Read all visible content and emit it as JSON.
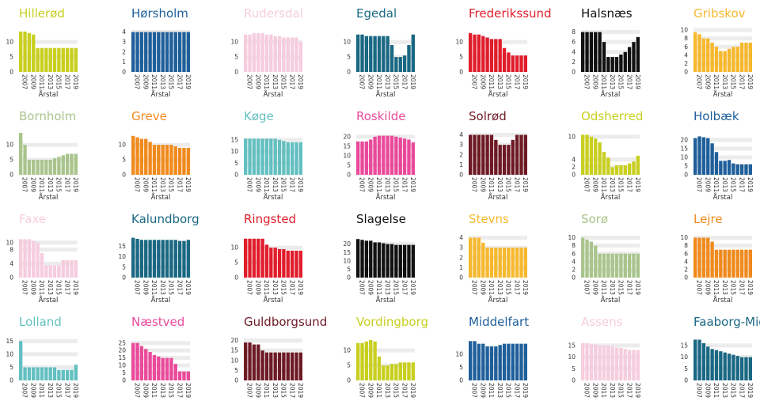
{
  "chart_data": [
    {
      "type": "bar",
      "title": "Hillerød",
      "color": "#c8cf1f",
      "xlabel": "Årstal",
      "x": [
        2007,
        2008,
        2009,
        2010,
        2011,
        2012,
        2013,
        2014,
        2015,
        2016,
        2017,
        2018,
        2019,
        2020
      ],
      "values": [
        13.5,
        13.5,
        13,
        12.5,
        8,
        8,
        8,
        8,
        8,
        8,
        8,
        8,
        8,
        8
      ],
      "yticks": [
        0,
        5,
        10
      ],
      "ymax": 14
    },
    {
      "type": "bar",
      "title": "Hørsholm",
      "color": "#1f5f9a",
      "xlabel": "Årstal",
      "x": [
        2007,
        2008,
        2009,
        2010,
        2011,
        2012,
        2013,
        2014,
        2015,
        2016,
        2017,
        2018,
        2019,
        2020
      ],
      "values": [
        4,
        4,
        4,
        4,
        4,
        4,
        4,
        4,
        4,
        4,
        4,
        4,
        4,
        4
      ],
      "yticks": [
        0,
        1,
        2,
        3,
        4
      ],
      "ymax": 4.2
    },
    {
      "type": "bar",
      "title": "Rudersdal",
      "color": "#f6cdde",
      "xlabel": "Årstal",
      "x": [
        2007,
        2008,
        2009,
        2010,
        2011,
        2012,
        2013,
        2014,
        2015,
        2016,
        2017,
        2018,
        2019,
        2020
      ],
      "values": [
        12.5,
        12.5,
        13,
        13,
        13,
        12.5,
        12.5,
        12,
        12,
        11.5,
        11.5,
        11.5,
        11.5,
        10
      ],
      "yticks": [
        0,
        5,
        10
      ],
      "ymax": 14
    },
    {
      "type": "bar",
      "title": "Egedal",
      "color": "#1a6883",
      "xlabel": "Årstal",
      "x": [
        2007,
        2008,
        2009,
        2010,
        2011,
        2012,
        2013,
        2014,
        2015,
        2016,
        2017,
        2018,
        2019,
        2020
      ],
      "values": [
        12.5,
        12.5,
        12,
        12,
        12,
        12,
        12,
        12,
        9,
        5,
        5,
        5.5,
        9,
        12.5
      ],
      "yticks": [
        0,
        5,
        10
      ],
      "ymax": 14
    },
    {
      "type": "bar",
      "title": "Frederikssund",
      "color": "#e11d2b",
      "xlabel": "Årstal",
      "x": [
        2007,
        2008,
        2009,
        2010,
        2011,
        2012,
        2013,
        2014,
        2015,
        2016,
        2017,
        2018,
        2019,
        2020
      ],
      "values": [
        13,
        12.5,
        12.5,
        12,
        11.5,
        11,
        11,
        11,
        8,
        6.5,
        5.5,
        5.5,
        5.5,
        5.5
      ],
      "yticks": [
        0,
        5,
        10
      ],
      "ymax": 14
    },
    {
      "type": "bar",
      "title": "Halsnæs",
      "color": "#111111",
      "xlabel": "Årstal",
      "x": [
        2007,
        2008,
        2009,
        2010,
        2011,
        2012,
        2013,
        2014,
        2015,
        2016,
        2017,
        2018,
        2019,
        2020
      ],
      "values": [
        8,
        8,
        8,
        8,
        8,
        6,
        3,
        3,
        3,
        3.5,
        4,
        5,
        6,
        7
      ],
      "yticks": [
        0,
        2,
        4,
        6,
        8
      ],
      "ymax": 8.4
    },
    {
      "type": "bar",
      "title": "Gribskov",
      "color": "#f6b82d",
      "xlabel": "Årstal",
      "x": [
        2007,
        2008,
        2009,
        2010,
        2011,
        2012,
        2013,
        2014,
        2015,
        2016,
        2017,
        2018,
        2019,
        2020
      ],
      "values": [
        9.5,
        9,
        8,
        8,
        7,
        6,
        5,
        5,
        5.5,
        6,
        6,
        7,
        7,
        7
      ],
      "yticks": [
        0,
        2,
        4,
        6,
        8,
        10
      ],
      "ymax": 10
    },
    {
      "type": "bar",
      "title": "Bornholm",
      "color": "#a9c48c",
      "xlabel": "Årstal",
      "x": [
        2007,
        2008,
        2009,
        2010,
        2011,
        2012,
        2013,
        2014,
        2015,
        2016,
        2017,
        2018,
        2019,
        2020
      ],
      "values": [
        14,
        10,
        5,
        5,
        5,
        5,
        5,
        5,
        5.5,
        6,
        6.5,
        7,
        7,
        7
      ],
      "yticks": [
        0,
        5,
        10
      ],
      "ymax": 14
    },
    {
      "type": "bar",
      "title": "Greve",
      "color": "#f08a1d",
      "xlabel": "Årstal",
      "x": [
        2007,
        2008,
        2009,
        2010,
        2011,
        2012,
        2013,
        2014,
        2015,
        2016,
        2017,
        2018,
        2019,
        2020
      ],
      "values": [
        13,
        12.5,
        12,
        12,
        11,
        10,
        10,
        10,
        10,
        10,
        9.5,
        9,
        9,
        9
      ],
      "yticks": [
        0,
        5,
        10
      ],
      "ymax": 14
    },
    {
      "type": "bar",
      "title": "Køge",
      "color": "#63bfc0",
      "xlabel": "Årstal",
      "x": [
        2007,
        2008,
        2009,
        2010,
        2011,
        2012,
        2013,
        2014,
        2015,
        2016,
        2017,
        2018,
        2019,
        2020
      ],
      "values": [
        15.5,
        15.5,
        15.5,
        15.5,
        15.5,
        15.5,
        15.5,
        15.5,
        15,
        14.5,
        14,
        14,
        14,
        14
      ],
      "yticks": [
        0,
        5,
        10,
        15
      ],
      "ymax": 18
    },
    {
      "type": "bar",
      "title": "Roskilde",
      "color": "#ea4a9b",
      "xlabel": "Årstal",
      "x": [
        2007,
        2008,
        2009,
        2010,
        2011,
        2012,
        2013,
        2014,
        2015,
        2016,
        2017,
        2018,
        2019,
        2020
      ],
      "values": [
        17.5,
        17.5,
        17.5,
        18.5,
        20,
        20.5,
        20.5,
        20.5,
        20.5,
        20,
        19.5,
        19,
        18.5,
        17
      ],
      "yticks": [
        0,
        5,
        10,
        15,
        20
      ],
      "ymax": 22
    },
    {
      "type": "bar",
      "title": "Solrød",
      "color": "#6d1a25",
      "xlabel": "Årstal",
      "x": [
        2007,
        2008,
        2009,
        2010,
        2011,
        2012,
        2013,
        2014,
        2015,
        2016,
        2017,
        2018,
        2019,
        2020
      ],
      "values": [
        4,
        4,
        4,
        4,
        4,
        4,
        3.5,
        3,
        3,
        3,
        3.5,
        4,
        4,
        4
      ],
      "yticks": [
        0,
        1,
        2,
        3,
        4
      ],
      "ymax": 4.2
    },
    {
      "type": "bar",
      "title": "Odsherred",
      "color": "#c8cf1f",
      "xlabel": "Årstal",
      "x": [
        2007,
        2008,
        2009,
        2010,
        2011,
        2012,
        2013,
        2014,
        2015,
        2016,
        2017,
        2018,
        2019,
        2020
      ],
      "values": [
        10.5,
        10.5,
        10,
        9.5,
        8.5,
        6,
        4.5,
        2,
        2.5,
        2.5,
        2.5,
        3,
        3.5,
        5
      ],
      "yticks": [
        0,
        2,
        4,
        10
      ],
      "ymax": 11
    },
    {
      "type": "bar",
      "title": "Holbæk",
      "color": "#1f5f9a",
      "xlabel": "Årstal",
      "x": [
        2007,
        2008,
        2009,
        2010,
        2011,
        2012,
        2013,
        2014,
        2015,
        2016,
        2017,
        2018,
        2019,
        2020
      ],
      "values": [
        21,
        22,
        21.5,
        21,
        18,
        13,
        8,
        8,
        8.5,
        6.5,
        6,
        6,
        6,
        6
      ],
      "yticks": [
        0,
        5,
        10,
        15,
        20
      ],
      "ymax": 24
    },
    {
      "type": "bar",
      "title": "Faxe",
      "color": "#f6cdde",
      "xlabel": "Årstal",
      "x": [
        2007,
        2008,
        2009,
        2010,
        2011,
        2012,
        2013,
        2014,
        2015,
        2016,
        2017,
        2018,
        2019,
        2020
      ],
      "values": [
        11,
        11,
        11,
        10.5,
        10,
        7,
        3.5,
        3.5,
        3.5,
        3.5,
        5,
        5,
        5,
        5
      ],
      "yticks": [
        0,
        4,
        8,
        10
      ],
      "ymax": 12
    },
    {
      "type": "bar",
      "title": "Kalundborg",
      "color": "#1a6883",
      "xlabel": "Årstal",
      "x": [
        2007,
        2008,
        2009,
        2010,
        2011,
        2012,
        2013,
        2014,
        2015,
        2016,
        2017,
        2018,
        2019,
        2020
      ],
      "values": [
        19,
        18.5,
        18,
        18,
        18,
        18,
        18,
        18,
        18,
        18,
        18,
        17.5,
        17.5,
        18
      ],
      "yticks": [
        0,
        5,
        10,
        15
      ],
      "ymax": 20
    },
    {
      "type": "bar",
      "title": "Ringsted",
      "color": "#e11d2b",
      "xlabel": "Årstal",
      "x": [
        2007,
        2008,
        2009,
        2010,
        2011,
        2012,
        2013,
        2014,
        2015,
        2016,
        2017,
        2018,
        2019,
        2020
      ],
      "values": [
        13,
        13,
        13,
        13,
        13,
        11,
        10,
        10,
        9.5,
        9.5,
        9,
        9,
        9,
        9
      ],
      "yticks": [
        0,
        5,
        10
      ],
      "ymax": 14
    },
    {
      "type": "bar",
      "title": "Slagelse",
      "color": "#111111",
      "xlabel": "Årstal",
      "x": [
        2007,
        2008,
        2009,
        2010,
        2011,
        2012,
        2013,
        2014,
        2015,
        2016,
        2017,
        2018,
        2019,
        2020
      ],
      "values": [
        23,
        22.5,
        22,
        22,
        21,
        21,
        20.5,
        20,
        20,
        19.5,
        19.5,
        19.5,
        19.5,
        19.5
      ],
      "yticks": [
        0,
        5,
        10,
        15,
        20
      ],
      "ymax": 25
    },
    {
      "type": "bar",
      "title": "Stevns",
      "color": "#f6b82d",
      "xlabel": "Årstal",
      "x": [
        2007,
        2008,
        2009,
        2010,
        2011,
        2012,
        2013,
        2014,
        2015,
        2016,
        2017,
        2018,
        2019,
        2020
      ],
      "values": [
        4,
        4,
        4,
        3.5,
        3,
        3,
        3,
        3,
        3,
        3,
        3,
        3,
        3,
        3
      ],
      "yticks": [
        0,
        1,
        2,
        3,
        4
      ],
      "ymax": 4.2
    },
    {
      "type": "bar",
      "title": "Sorø",
      "color": "#a9c48c",
      "xlabel": "Årstal",
      "x": [
        2007,
        2008,
        2009,
        2010,
        2011,
        2012,
        2013,
        2014,
        2015,
        2016,
        2017,
        2018,
        2019,
        2020
      ],
      "values": [
        10,
        9.5,
        9,
        8,
        6,
        6,
        6,
        6,
        6,
        6,
        6,
        6,
        6,
        6
      ],
      "yticks": [
        0,
        2,
        4,
        6,
        8,
        10
      ],
      "ymax": 10.5
    },
    {
      "type": "bar",
      "title": "Lejre",
      "color": "#f08a1d",
      "xlabel": "Årstal",
      "x": [
        2007,
        2008,
        2009,
        2010,
        2011,
        2012,
        2013,
        2014,
        2015,
        2016,
        2017,
        2018,
        2019,
        2020
      ],
      "values": [
        10,
        10,
        10,
        10,
        9,
        7,
        7,
        7,
        7,
        7,
        7,
        7,
        7,
        7
      ],
      "yticks": [
        0,
        2,
        4,
        6,
        8,
        10
      ],
      "ymax": 10.5
    },
    {
      "type": "bar",
      "title": "Lolland",
      "color": "#63bfc0",
      "xlabel": "",
      "x": [
        2007,
        2008,
        2009,
        2010,
        2011,
        2012,
        2013,
        2014,
        2015,
        2016,
        2017,
        2018,
        2019,
        2020
      ],
      "values": [
        15,
        5,
        5,
        5,
        5,
        5,
        5,
        5,
        5,
        4,
        4,
        4,
        4,
        6
      ],
      "yticks": [
        0,
        5,
        10,
        15
      ],
      "ymax": 16
    },
    {
      "type": "bar",
      "title": "Næstved",
      "color": "#ea4a9b",
      "xlabel": "",
      "x": [
        2007,
        2008,
        2009,
        2010,
        2011,
        2012,
        2013,
        2014,
        2015,
        2016,
        2017,
        2018,
        2019,
        2020
      ],
      "values": [
        25,
        25,
        23,
        21,
        19,
        17,
        16,
        15,
        15,
        15,
        11,
        6,
        6,
        6
      ],
      "yticks": [
        0,
        5,
        10,
        15,
        20,
        25
      ],
      "ymax": 28
    },
    {
      "type": "bar",
      "title": "Guldborgsund",
      "color": "#6d1a25",
      "xlabel": "",
      "x": [
        2007,
        2008,
        2009,
        2010,
        2011,
        2012,
        2013,
        2014,
        2015,
        2016,
        2017,
        2018,
        2019,
        2020
      ],
      "values": [
        19,
        19,
        18,
        18,
        15,
        14,
        14,
        14,
        14,
        14,
        14,
        14,
        14,
        14
      ],
      "yticks": [
        0,
        5,
        10,
        15,
        20
      ],
      "ymax": 21
    },
    {
      "type": "bar",
      "title": "Vordingborg",
      "color": "#c8cf1f",
      "xlabel": "",
      "x": [
        2007,
        2008,
        2009,
        2010,
        2011,
        2012,
        2013,
        2014,
        2015,
        2016,
        2017,
        2018,
        2019,
        2020
      ],
      "values": [
        12.5,
        12.5,
        13,
        13.5,
        13,
        8,
        5,
        5,
        5.5,
        5.5,
        6,
        6,
        6,
        6
      ],
      "yticks": [
        0,
        5,
        10
      ],
      "ymax": 14
    },
    {
      "type": "bar",
      "title": "Middelfart",
      "color": "#1f5f9a",
      "xlabel": "",
      "x": [
        2007,
        2008,
        2009,
        2010,
        2011,
        2012,
        2013,
        2014,
        2015,
        2016,
        2017,
        2018,
        2019,
        2020
      ],
      "values": [
        15,
        15,
        14,
        14,
        13,
        13,
        13,
        13.5,
        14,
        14,
        14,
        14,
        14,
        14
      ],
      "yticks": [
        0,
        5,
        10
      ],
      "ymax": 16
    },
    {
      "type": "bar",
      "title": "Assens",
      "color": "#f6cdde",
      "xlabel": "",
      "x": [
        2007,
        2008,
        2009,
        2010,
        2011,
        2012,
        2013,
        2014,
        2015,
        2016,
        2017,
        2018,
        2019,
        2020
      ],
      "values": [
        16,
        16,
        15.5,
        15.5,
        15,
        15,
        15,
        14.5,
        14,
        14,
        13.5,
        13,
        13,
        13
      ],
      "yticks": [
        0,
        5,
        10,
        15
      ],
      "ymax": 18
    },
    {
      "type": "bar",
      "title": "Faaborg-Midtfyn",
      "color": "#1a6883",
      "xlabel": "",
      "x": [
        2007,
        2008,
        2009,
        2010,
        2011,
        2012,
        2013,
        2014,
        2015,
        2016,
        2017,
        2018,
        2019,
        2020
      ],
      "values": [
        17.5,
        17.5,
        16,
        14.5,
        13.5,
        13,
        12.5,
        12,
        11.5,
        11,
        10.5,
        10,
        10,
        10
      ],
      "yticks": [
        0,
        5,
        10,
        15
      ],
      "ymax": 18
    }
  ]
}
